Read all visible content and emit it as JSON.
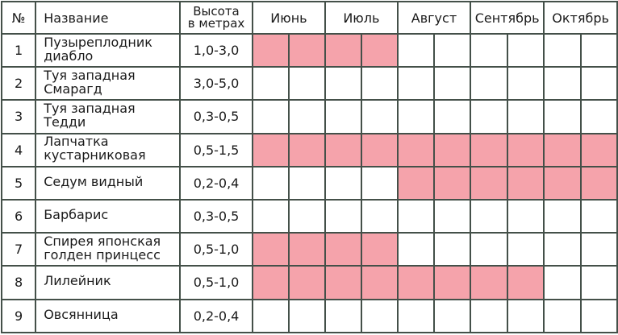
{
  "table": {
    "headers": {
      "num": "№",
      "name": "Название",
      "height_line1": "Высота",
      "height_line2": "в метрах"
    },
    "months": [
      "Июнь",
      "Июль",
      "Август",
      "Сентябрь",
      "Октябрь"
    ],
    "highlight_color": "#F5A3AB",
    "grid_color": "#445049",
    "rows": [
      {
        "num": "1",
        "name1": "Пузыреплодник",
        "name2": "диабло",
        "height": "1,0-3,0",
        "cells": [
          1,
          1,
          1,
          1,
          0,
          0,
          0,
          0,
          0,
          0
        ]
      },
      {
        "num": "2",
        "name1": "Туя западная",
        "name2": "Смарагд",
        "height": "3,0-5,0",
        "cells": [
          0,
          0,
          0,
          0,
          0,
          0,
          0,
          0,
          0,
          0
        ]
      },
      {
        "num": "3",
        "name1": "Туя западная",
        "name2": "Тедди",
        "height": "0,3-0,5",
        "cells": [
          0,
          0,
          0,
          0,
          0,
          0,
          0,
          0,
          0,
          0
        ]
      },
      {
        "num": "4",
        "name1": "Лапчатка",
        "name2": "кустарниковая",
        "height": "0,5-1,5",
        "cells": [
          1,
          1,
          1,
          1,
          1,
          1,
          1,
          1,
          1,
          1
        ]
      },
      {
        "num": "5",
        "name1": "Седум видный",
        "name2": "",
        "height": "0,2-0,4",
        "cells": [
          0,
          0,
          0,
          0,
          1,
          1,
          1,
          1,
          1,
          1
        ]
      },
      {
        "num": "6",
        "name1": "Барбарис",
        "name2": "",
        "height": "0,3-0,5",
        "cells": [
          0,
          0,
          0,
          0,
          0,
          0,
          0,
          0,
          0,
          0
        ]
      },
      {
        "num": "7",
        "name1": "Спирея японская",
        "name2": "голден принцесс",
        "height": "0,5-1,0",
        "cells": [
          1,
          1,
          1,
          1,
          0,
          0,
          0,
          0,
          0,
          0
        ]
      },
      {
        "num": "8",
        "name1": "Лилейник",
        "name2": "",
        "height": "0,5-1,0",
        "cells": [
          1,
          1,
          1,
          1,
          1,
          1,
          1,
          1,
          0,
          0
        ]
      },
      {
        "num": "9",
        "name1": "Овсянница",
        "name2": "",
        "height": "0,2-0,4",
        "cells": [
          0,
          0,
          0,
          0,
          0,
          0,
          0,
          0,
          0,
          0
        ]
      }
    ]
  }
}
